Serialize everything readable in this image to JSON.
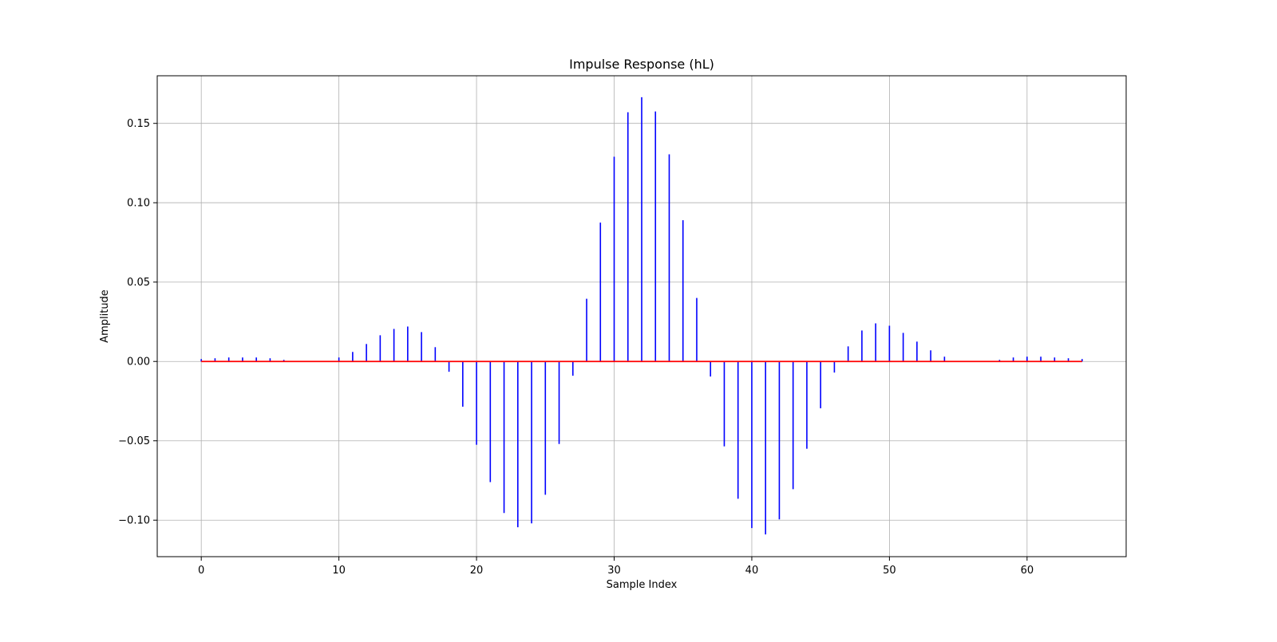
{
  "chart_data": {
    "type": "stem",
    "title": "Impulse Response (hL)",
    "xlabel": "Sample Index",
    "ylabel": "Amplitude",
    "xlim": [
      -3.2,
      67.2
    ],
    "ylim": [
      -0.123,
      0.18
    ],
    "xticks": [
      0,
      10,
      20,
      30,
      40,
      50,
      60
    ],
    "xtick_labels": [
      "0",
      "10",
      "20",
      "30",
      "40",
      "50",
      "60"
    ],
    "yticks": [
      -0.1,
      -0.05,
      0.0,
      0.05,
      0.1,
      0.15
    ],
    "ytick_labels": [
      "−0.10",
      "−0.05",
      "0.00",
      "0.05",
      "0.10",
      "0.15"
    ],
    "grid": true,
    "legend": "none",
    "series": [
      {
        "x": [
          0,
          1,
          2,
          3,
          4,
          5,
          6,
          7,
          8,
          9,
          10,
          11,
          12,
          13,
          14,
          15,
          16,
          17,
          18,
          19,
          20,
          21,
          22,
          23,
          24,
          25,
          26,
          27,
          28,
          29,
          30,
          31,
          32,
          33,
          34,
          35,
          36,
          37,
          38,
          39,
          40,
          41,
          42,
          43,
          44,
          45,
          46,
          47,
          48,
          49,
          50,
          51,
          52,
          53,
          54,
          55,
          56,
          57,
          58,
          59,
          60,
          61,
          62,
          63,
          64
        ],
        "values": [
          0.0015,
          0.002,
          0.0025,
          0.0025,
          0.0025,
          0.002,
          0.001,
          0.0,
          0.0,
          0.0,
          0.0025,
          0.006,
          0.011,
          0.0165,
          0.0205,
          0.022,
          0.0185,
          0.009,
          -0.0065,
          -0.0285,
          -0.0525,
          -0.076,
          -0.0955,
          -0.1045,
          -0.102,
          -0.084,
          -0.052,
          -0.009,
          0.0395,
          0.0875,
          0.129,
          0.157,
          0.1665,
          0.1575,
          0.1305,
          0.089,
          0.04,
          -0.0095,
          -0.0535,
          -0.0865,
          -0.105,
          -0.109,
          -0.0995,
          -0.0805,
          -0.055,
          -0.0295,
          -0.007,
          0.0095,
          0.0195,
          0.024,
          0.0225,
          0.018,
          0.0125,
          0.007,
          0.003,
          0.0,
          0.0,
          0.0,
          0.001,
          0.0025,
          0.003,
          0.003,
          0.0025,
          0.002,
          0.0015
        ]
      }
    ],
    "colors": {
      "stem": "#0000ff",
      "baseline": "#ff0000",
      "grid": "#b0b0b0",
      "axes": "#000000"
    }
  }
}
